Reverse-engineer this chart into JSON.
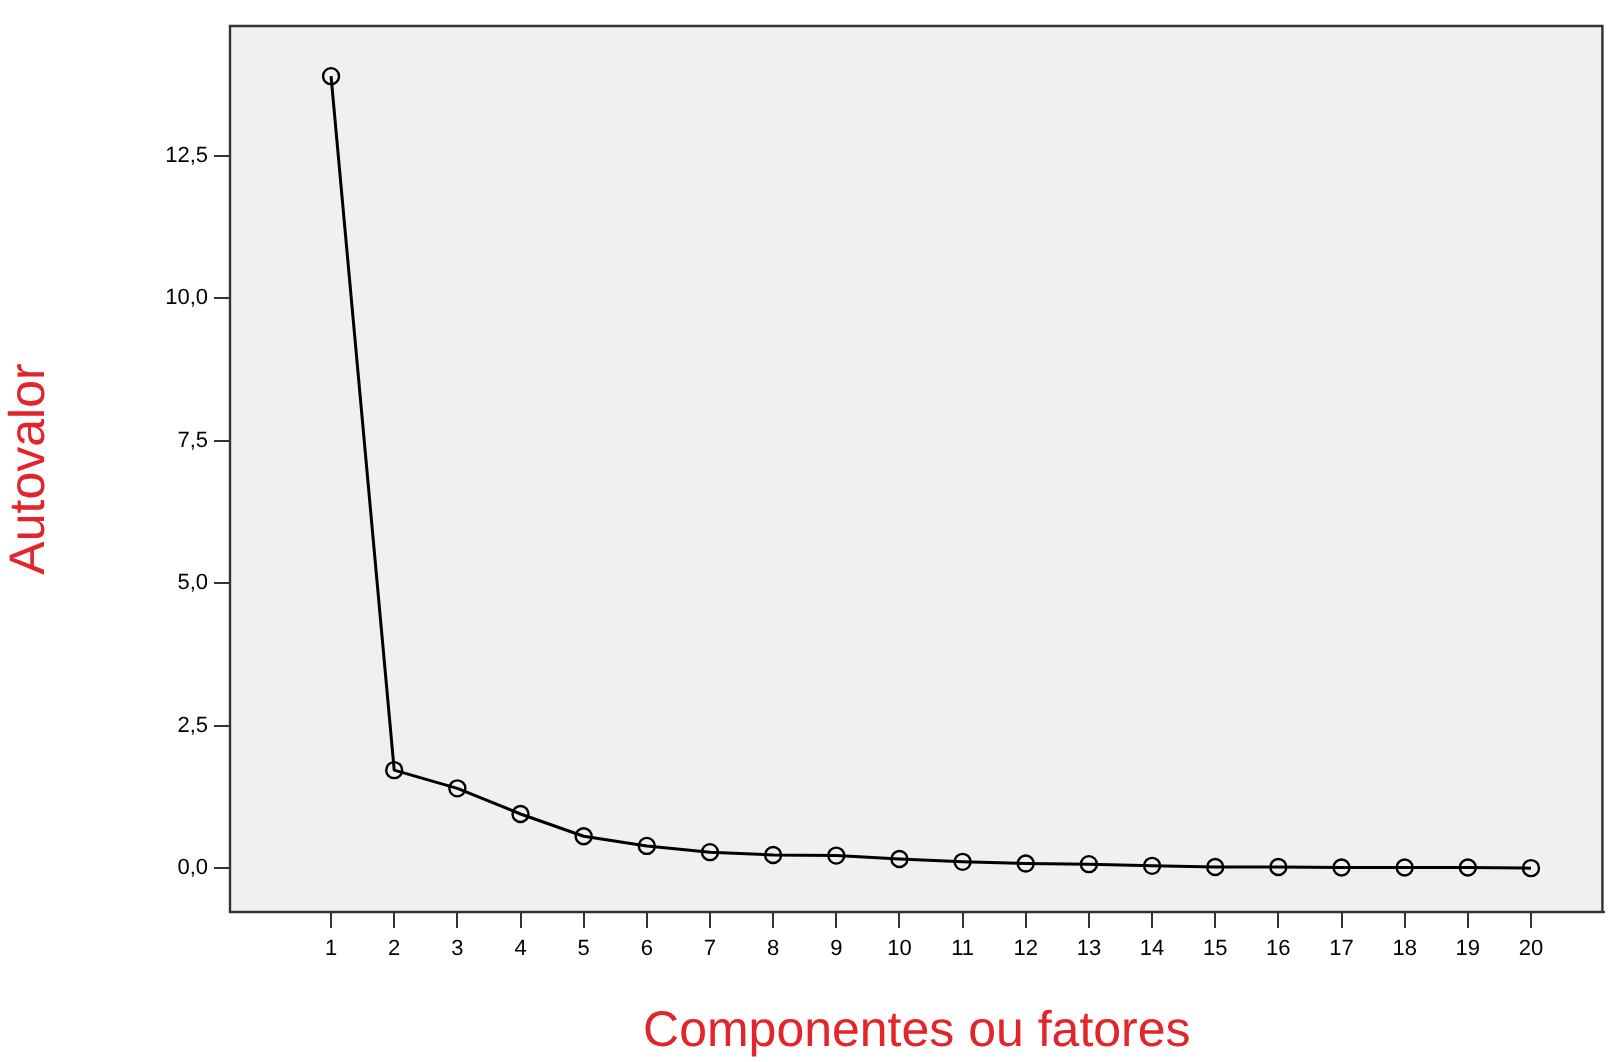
{
  "chart_data": {
    "type": "line",
    "xlabel": "Componentes ou fatores",
    "ylabel": "Autovalor",
    "x": [
      1,
      2,
      3,
      4,
      5,
      6,
      7,
      8,
      9,
      10,
      11,
      12,
      13,
      14,
      15,
      16,
      17,
      18,
      19,
      20
    ],
    "series": [
      {
        "color": "#000000",
        "values": [
          13.9,
          1.72,
          1.4,
          0.95,
          0.56,
          0.39,
          0.28,
          0.23,
          0.22,
          0.16,
          0.11,
          0.08,
          0.07,
          0.04,
          0.02,
          0.02,
          0.01,
          0.01,
          0.01,
          0.0
        ]
      }
    ],
    "xlim": [
      -0.6,
      21.15
    ],
    "xticks": [
      1,
      2,
      3,
      4,
      5,
      6,
      7,
      8,
      9,
      10,
      11,
      12,
      13,
      14,
      15,
      16,
      17,
      18,
      19,
      20
    ],
    "ylim": [
      -0.77,
      14.78
    ],
    "yticks": [
      {
        "value": 0,
        "label": "0,0"
      },
      {
        "value": 2.5,
        "label": "2,5"
      },
      {
        "value": 5,
        "label": "5,0"
      },
      {
        "value": 7.5,
        "label": "7,5"
      },
      {
        "value": 10,
        "label": "10,0"
      },
      {
        "value": 12.5,
        "label": "12,5"
      }
    ],
    "grid": false,
    "legend": false,
    "marker": "circle",
    "line_style": "solid"
  }
}
